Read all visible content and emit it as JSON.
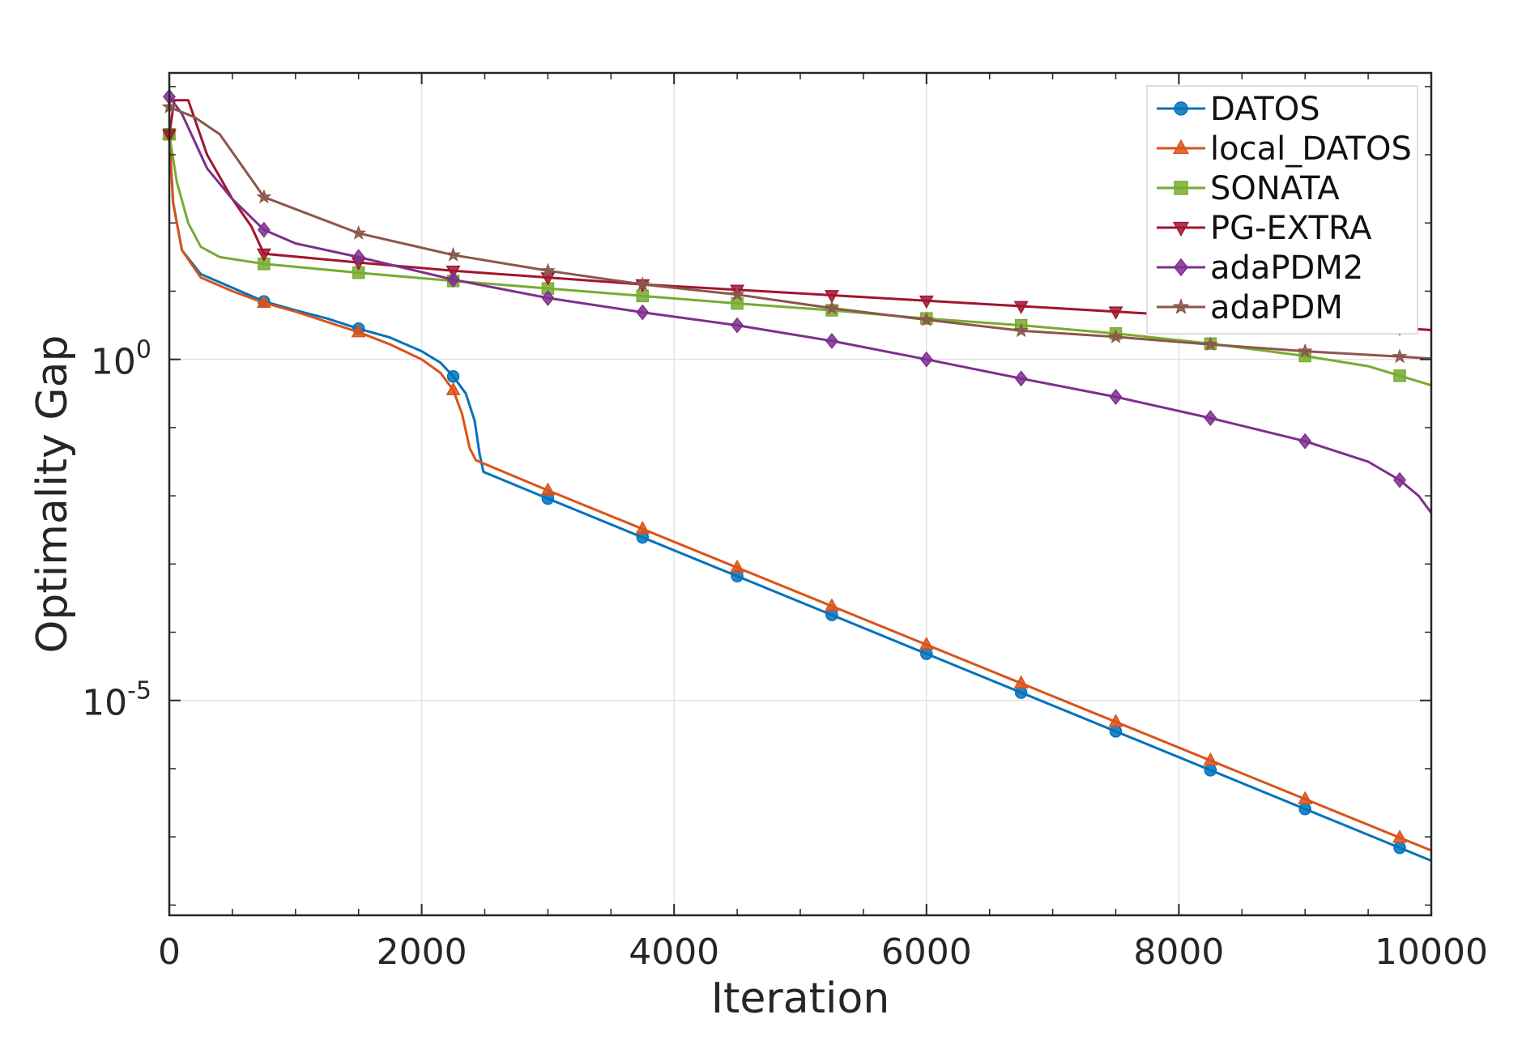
{
  "chart_data": {
    "type": "line",
    "title": "",
    "xlabel": "Iteration",
    "ylabel": "Optimality Gap",
    "xscale": "linear",
    "yscale": "log",
    "xlim": [
      0,
      10000
    ],
    "ylim_log10": [
      -8.15,
      4.2
    ],
    "grid": true,
    "legend_position": "top-right",
    "xticks": [
      {
        "value": 0,
        "label": "0"
      },
      {
        "value": 2000,
        "label": "2000"
      },
      {
        "value": 4000,
        "label": "4000"
      },
      {
        "value": 6000,
        "label": "6000"
      },
      {
        "value": 8000,
        "label": "8000"
      },
      {
        "value": 10000,
        "label": "10000"
      }
    ],
    "yticks": [
      {
        "log10": 0,
        "base": "10",
        "exp": "0"
      },
      {
        "log10": -5,
        "base": "10",
        "exp": "-5"
      }
    ],
    "marker_x": [
      0,
      750,
      1500,
      2250,
      3000,
      3750,
      4500,
      5250,
      6000,
      6750,
      7500,
      8250,
      9000,
      9750
    ],
    "series": [
      {
        "name": "DATOS",
        "color": "#0072BD",
        "marker": "circle",
        "points_log10": [
          [
            0,
            3.3
          ],
          [
            30,
            2.3
          ],
          [
            100,
            1.6
          ],
          [
            250,
            1.25
          ],
          [
            500,
            1.05
          ],
          [
            750,
            0.85
          ],
          [
            1000,
            0.72
          ],
          [
            1250,
            0.6
          ],
          [
            1500,
            0.45
          ],
          [
            1750,
            0.32
          ],
          [
            2000,
            0.12
          ],
          [
            2150,
            -0.05
          ],
          [
            2250,
            -0.25
          ],
          [
            2350,
            -0.5
          ],
          [
            2420,
            -0.9
          ],
          [
            2460,
            -1.4
          ],
          [
            2490,
            -1.65
          ],
          [
            3000,
            -2.04
          ],
          [
            10000,
            -7.35
          ]
        ]
      },
      {
        "name": "local_DATOS",
        "color": "#D95319",
        "marker": "triangle-up",
        "points_log10": [
          [
            0,
            3.3
          ],
          [
            30,
            2.3
          ],
          [
            100,
            1.6
          ],
          [
            250,
            1.2
          ],
          [
            500,
            1.0
          ],
          [
            750,
            0.83
          ],
          [
            1000,
            0.7
          ],
          [
            1250,
            0.55
          ],
          [
            1500,
            0.4
          ],
          [
            1750,
            0.22
          ],
          [
            2000,
            0.0
          ],
          [
            2150,
            -0.2
          ],
          [
            2250,
            -0.45
          ],
          [
            2320,
            -0.8
          ],
          [
            2380,
            -1.3
          ],
          [
            2430,
            -1.48
          ],
          [
            3000,
            -1.92
          ],
          [
            10000,
            -7.2
          ]
        ]
      },
      {
        "name": "SONATA",
        "color": "#77AC30",
        "marker": "square",
        "points_log10": [
          [
            0,
            3.3
          ],
          [
            60,
            2.6
          ],
          [
            150,
            2.0
          ],
          [
            250,
            1.65
          ],
          [
            400,
            1.5
          ],
          [
            750,
            1.4
          ],
          [
            1500,
            1.27
          ],
          [
            2250,
            1.15
          ],
          [
            3000,
            1.04
          ],
          [
            3750,
            0.93
          ],
          [
            4500,
            0.82
          ],
          [
            5250,
            0.72
          ],
          [
            6000,
            0.6
          ],
          [
            6750,
            0.5
          ],
          [
            7500,
            0.38
          ],
          [
            8250,
            0.23
          ],
          [
            9000,
            0.05
          ],
          [
            9500,
            -0.1
          ],
          [
            10000,
            -0.38
          ]
        ]
      },
      {
        "name": "PG-EXTRA",
        "color": "#A2142F",
        "marker": "triangle-down",
        "points_log10": [
          [
            0,
            3.3
          ],
          [
            40,
            3.8
          ],
          [
            150,
            3.8
          ],
          [
            300,
            3.0
          ],
          [
            500,
            2.35
          ],
          [
            650,
            1.95
          ],
          [
            750,
            1.55
          ],
          [
            1500,
            1.42
          ],
          [
            2250,
            1.3
          ],
          [
            3000,
            1.2
          ],
          [
            3750,
            1.1
          ],
          [
            4500,
            1.02
          ],
          [
            5250,
            0.94
          ],
          [
            6000,
            0.86
          ],
          [
            6750,
            0.78
          ],
          [
            7500,
            0.7
          ],
          [
            8250,
            0.62
          ],
          [
            9000,
            0.54
          ],
          [
            9750,
            0.46
          ],
          [
            10000,
            0.43
          ]
        ]
      },
      {
        "name": "adaPDM2",
        "color": "#7E2F8E",
        "marker": "diamond",
        "points_log10": [
          [
            0,
            3.85
          ],
          [
            100,
            3.6
          ],
          [
            300,
            2.8
          ],
          [
            500,
            2.35
          ],
          [
            750,
            1.9
          ],
          [
            1000,
            1.7
          ],
          [
            1500,
            1.5
          ],
          [
            2250,
            1.17
          ],
          [
            3000,
            0.9
          ],
          [
            3750,
            0.69
          ],
          [
            4500,
            0.5
          ],
          [
            5250,
            0.27
          ],
          [
            6000,
            0.0
          ],
          [
            6750,
            -0.28
          ],
          [
            7500,
            -0.55
          ],
          [
            8250,
            -0.86
          ],
          [
            9000,
            -1.2
          ],
          [
            9500,
            -1.5
          ],
          [
            9750,
            -1.77
          ],
          [
            9900,
            -2.0
          ],
          [
            10000,
            -2.25
          ]
        ]
      },
      {
        "name": "adaPDM",
        "color": "#8C564B",
        "marker": "star",
        "points_log10": [
          [
            0,
            3.7
          ],
          [
            200,
            3.55
          ],
          [
            400,
            3.3
          ],
          [
            750,
            2.38
          ],
          [
            1500,
            1.85
          ],
          [
            2250,
            1.53
          ],
          [
            3000,
            1.3
          ],
          [
            3750,
            1.1
          ],
          [
            4500,
            0.95
          ],
          [
            5250,
            0.75
          ],
          [
            6000,
            0.58
          ],
          [
            6750,
            0.42
          ],
          [
            7500,
            0.33
          ],
          [
            8250,
            0.22
          ],
          [
            9000,
            0.12
          ],
          [
            9750,
            0.04
          ],
          [
            10000,
            0.01
          ]
        ]
      }
    ]
  }
}
